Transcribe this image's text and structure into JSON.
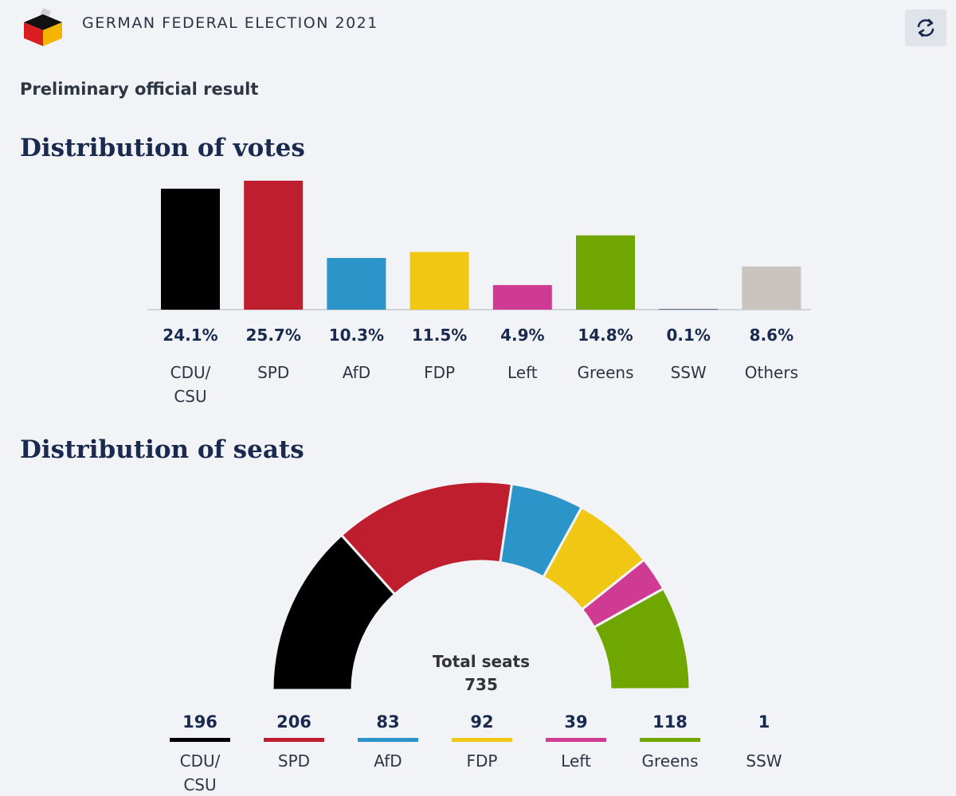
{
  "header": {
    "title": "GERMAN FEDERAL ELECTION 2021",
    "logo_icon": "ballot-box-icon",
    "refresh_icon": "refresh-icon"
  },
  "subtitle": "Preliminary official result",
  "chart_data": [
    {
      "type": "bar",
      "title": "Distribution of votes",
      "categories": [
        [
          "CDU/",
          "CSU"
        ],
        [
          "SPD"
        ],
        [
          "AfD"
        ],
        [
          "FDP"
        ],
        [
          "Left"
        ],
        [
          "Greens"
        ],
        [
          "SSW"
        ],
        [
          "Others"
        ]
      ],
      "values": [
        24.1,
        25.7,
        10.3,
        11.5,
        4.9,
        14.8,
        0.1,
        8.6
      ],
      "value_labels": [
        "24.1%",
        "25.7%",
        "10.3%",
        "11.5%",
        "4.9%",
        "14.8%",
        "0.1%",
        "8.6%"
      ],
      "colors": [
        "#000000",
        "#be1e2d",
        "#2b94c9",
        "#f0c814",
        "#cf3a93",
        "#6fa700",
        "#1a2a4f",
        "#c9c4bd"
      ],
      "unit": "%",
      "grid": false,
      "legend": "none"
    },
    {
      "type": "pie",
      "style": "semicircle",
      "title": "Distribution of seats",
      "categories": [
        [
          "CDU/",
          "CSU"
        ],
        [
          "SPD"
        ],
        [
          "AfD"
        ],
        [
          "FDP"
        ],
        [
          "Left"
        ],
        [
          "Greens"
        ],
        [
          "SSW"
        ]
      ],
      "values": [
        196,
        206,
        83,
        92,
        39,
        118,
        1
      ],
      "colors": [
        "#000000",
        "#be1e2d",
        "#2b94c9",
        "#f0c814",
        "#cf3a93",
        "#6fa700",
        "#1a2a4f"
      ],
      "center_label": "Total seats",
      "total": "735",
      "legend": "bottom"
    }
  ]
}
